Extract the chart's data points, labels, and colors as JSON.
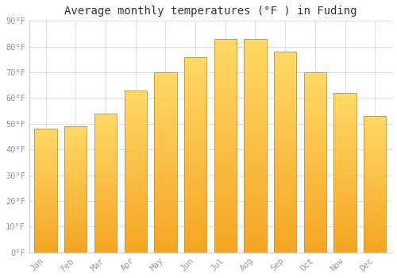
{
  "title": "Average monthly temperatures (°F ) in Fuding",
  "months": [
    "Jan",
    "Feb",
    "Mar",
    "Apr",
    "May",
    "Jun",
    "Jul",
    "Aug",
    "Sep",
    "Oct",
    "Nov",
    "Dec"
  ],
  "values": [
    48,
    49,
    54,
    63,
    70,
    76,
    83,
    83,
    78,
    70,
    62,
    53
  ],
  "bar_color_bottom": "#F5A623",
  "bar_color_top": "#FFD966",
  "bar_edge_color": "#C8922A",
  "background_color": "#FFFFFF",
  "grid_color": "#E0E0E0",
  "ylim": [
    0,
    90
  ],
  "yticks": [
    0,
    10,
    20,
    30,
    40,
    50,
    60,
    70,
    80,
    90
  ],
  "title_fontsize": 10,
  "tick_fontsize": 7.5,
  "tick_color": "#999999",
  "bar_width": 0.75
}
